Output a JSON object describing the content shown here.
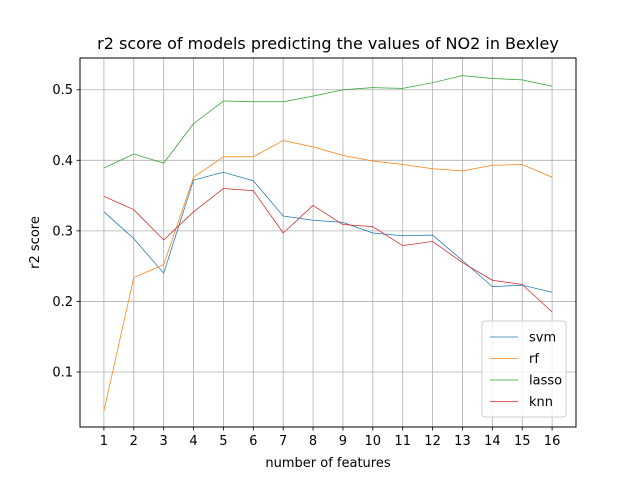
{
  "chart_data": {
    "type": "line",
    "title": "r2 score of models predicting the values of NO2 in Bexley",
    "xlabel": "number of features",
    "ylabel": "r2 score",
    "x": [
      1,
      2,
      3,
      4,
      5,
      6,
      7,
      8,
      9,
      10,
      11,
      12,
      13,
      14,
      15,
      16
    ],
    "xlim": [
      0.2,
      16.8
    ],
    "ylim": [
      0.022,
      0.545
    ],
    "yticks": [
      0.1,
      0.2,
      0.3,
      0.4,
      0.5
    ],
    "ytick_labels": [
      "0.1",
      "0.2",
      "0.3",
      "0.4",
      "0.5"
    ],
    "grid": true,
    "legend_position": "lower-right",
    "series": [
      {
        "name": "svm",
        "color": "#1f77b4",
        "values": [
          0.327,
          0.289,
          0.24,
          0.372,
          0.383,
          0.371,
          0.321,
          0.315,
          0.312,
          0.297,
          0.293,
          0.294,
          0.258,
          0.221,
          0.223,
          0.213
        ]
      },
      {
        "name": "rf",
        "color": "#ff7f0e",
        "values": [
          0.045,
          0.234,
          0.252,
          0.376,
          0.405,
          0.405,
          0.428,
          0.419,
          0.407,
          0.399,
          0.394,
          0.388,
          0.385,
          0.393,
          0.394,
          0.376
        ]
      },
      {
        "name": "lasso",
        "color": "#2ca02c",
        "values": [
          0.389,
          0.409,
          0.396,
          0.452,
          0.484,
          0.483,
          0.483,
          0.491,
          0.5,
          0.503,
          0.502,
          0.51,
          0.52,
          0.516,
          0.514,
          0.505
        ]
      },
      {
        "name": "knn",
        "color": "#d62728",
        "values": [
          0.349,
          0.33,
          0.287,
          0.327,
          0.36,
          0.357,
          0.297,
          0.336,
          0.309,
          0.306,
          0.279,
          0.285,
          0.255,
          0.23,
          0.224,
          0.185
        ]
      }
    ]
  }
}
